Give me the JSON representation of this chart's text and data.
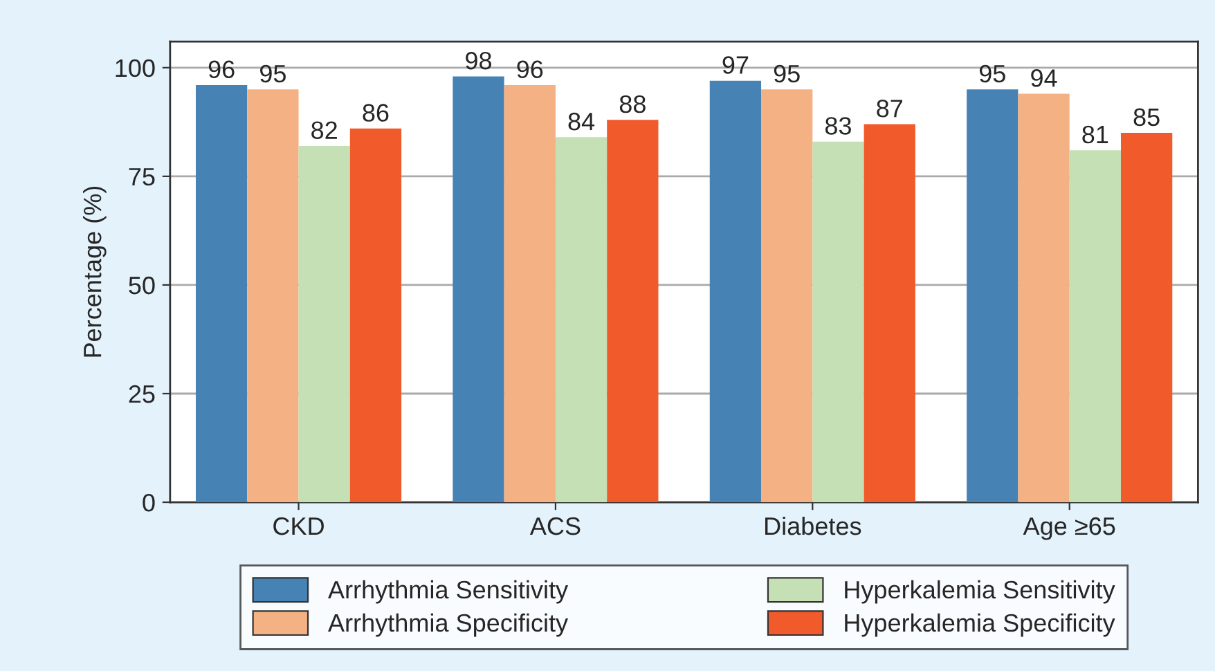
{
  "chart_data": {
    "type": "bar",
    "ylabel": "Percentage (%)",
    "categories": [
      "CKD",
      "ACS",
      "Diabetes",
      "Age ≥65"
    ],
    "series": [
      {
        "name": "Arrhythmia Sensitivity",
        "color": "#4682b4",
        "values": [
          96,
          98,
          97,
          95
        ]
      },
      {
        "name": "Arrhythmia Specificity",
        "color": "#f4b183",
        "values": [
          95,
          96,
          95,
          94
        ]
      },
      {
        "name": "Hyperkalemia Sensitivity",
        "color": "#c5e0b4",
        "values": [
          82,
          84,
          83,
          81
        ]
      },
      {
        "name": "Hyperkalemia Specificity",
        "color": "#f15a2b",
        "values": [
          86,
          88,
          87,
          85
        ]
      }
    ],
    "ylim": [
      0,
      106
    ],
    "yticks": [
      0,
      25,
      50,
      75,
      100
    ],
    "grid": "y",
    "legend": "bottom",
    "data_labels": true
  }
}
